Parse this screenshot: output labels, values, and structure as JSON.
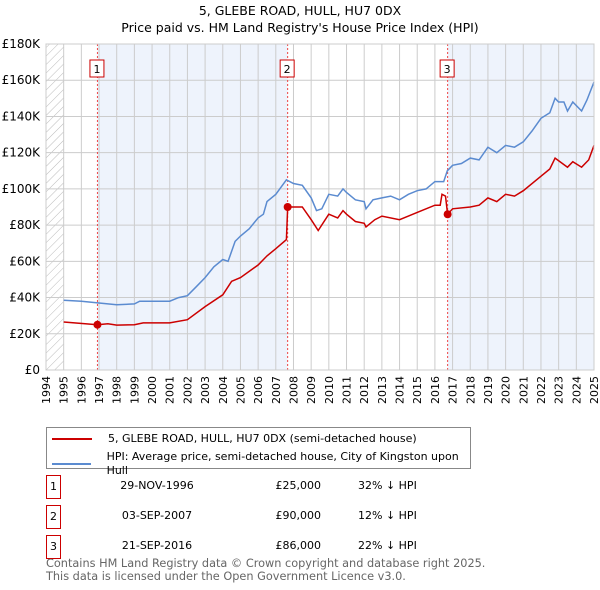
{
  "title": "5, GLEBE ROAD, HULL, HU7 0DX",
  "subtitle": "Price paid vs. HM Land Registry's House Price Index (HPI)",
  "colors": {
    "property": "#cc0000",
    "hpi": "#5b8bd0",
    "shade": "#eef3fc"
  },
  "chart_data": {
    "type": "line",
    "xlim": [
      1994,
      2025
    ],
    "ylim": [
      0,
      180000
    ],
    "yticks": [
      {
        "v": 0,
        "label": "£0"
      },
      {
        "v": 20000,
        "label": "£20K"
      },
      {
        "v": 40000,
        "label": "£40K"
      },
      {
        "v": 60000,
        "label": "£60K"
      },
      {
        "v": 80000,
        "label": "£80K"
      },
      {
        "v": 100000,
        "label": "£100K"
      },
      {
        "v": 120000,
        "label": "£120K"
      },
      {
        "v": 140000,
        "label": "£140K"
      },
      {
        "v": 160000,
        "label": "£160K"
      },
      {
        "v": 180000,
        "label": "£180K"
      }
    ],
    "xticks": [
      "1994",
      "1995",
      "1996",
      "1997",
      "1998",
      "1999",
      "2000",
      "2001",
      "2002",
      "2003",
      "2004",
      "2005",
      "2006",
      "2007",
      "2008",
      "2009",
      "2010",
      "2011",
      "2012",
      "2013",
      "2014",
      "2015",
      "2016",
      "2017",
      "2018",
      "2019",
      "2020",
      "2021",
      "2022",
      "2023",
      "2024",
      "2025"
    ],
    "series": [
      {
        "name": "HPI: Average price, semi-detached house, City of Kingston upon Hull",
        "color": "#5b8bd0",
        "points": [
          [
            1995,
            38500
          ],
          [
            1996,
            38000
          ],
          [
            1997,
            37000
          ],
          [
            1998,
            36000
          ],
          [
            1999,
            36500
          ],
          [
            1999.3,
            38000
          ],
          [
            2000,
            38000
          ],
          [
            2001,
            38000
          ],
          [
            2001.5,
            40000
          ],
          [
            2002,
            41000
          ],
          [
            2002.5,
            46000
          ],
          [
            2003,
            51000
          ],
          [
            2003.5,
            57000
          ],
          [
            2004,
            61000
          ],
          [
            2004.3,
            60000
          ],
          [
            2004.7,
            71000
          ],
          [
            2005,
            74000
          ],
          [
            2005.5,
            78000
          ],
          [
            2006,
            84000
          ],
          [
            2006.3,
            86000
          ],
          [
            2006.5,
            93000
          ],
          [
            2007,
            97000
          ],
          [
            2007.6,
            105000
          ],
          [
            2008,
            103000
          ],
          [
            2008.5,
            102000
          ],
          [
            2009,
            95000
          ],
          [
            2009.3,
            88000
          ],
          [
            2009.6,
            89000
          ],
          [
            2010,
            97000
          ],
          [
            2010.5,
            96000
          ],
          [
            2010.8,
            100000
          ],
          [
            2011,
            98000
          ],
          [
            2011.5,
            94000
          ],
          [
            2012,
            93000
          ],
          [
            2012.1,
            89000
          ],
          [
            2012.5,
            94000
          ],
          [
            2013,
            95000
          ],
          [
            2013.5,
            96000
          ],
          [
            2014,
            94000
          ],
          [
            2014.5,
            97000
          ],
          [
            2015,
            99000
          ],
          [
            2015.5,
            100000
          ],
          [
            2016,
            104000
          ],
          [
            2016.5,
            104000
          ],
          [
            2016.7,
            110000
          ],
          [
            2017,
            113000
          ],
          [
            2017.5,
            114000
          ],
          [
            2018,
            117000
          ],
          [
            2018.5,
            116000
          ],
          [
            2019,
            123000
          ],
          [
            2019.5,
            120000
          ],
          [
            2020,
            124000
          ],
          [
            2020.5,
            123000
          ],
          [
            2021,
            126000
          ],
          [
            2021.5,
            132000
          ],
          [
            2022,
            139000
          ],
          [
            2022.5,
            142000
          ],
          [
            2022.8,
            150000
          ],
          [
            2023,
            148000
          ],
          [
            2023.3,
            148000
          ],
          [
            2023.5,
            143000
          ],
          [
            2023.8,
            148000
          ],
          [
            2024.3,
            143000
          ],
          [
            2024.6,
            149000
          ],
          [
            2025,
            159000
          ]
        ]
      },
      {
        "name": "5, GLEBE ROAD, HULL, HU7 0DX (semi-detached house)",
        "color": "#cc0000",
        "points": [
          [
            1995,
            26500
          ],
          [
            1996.91,
            25000
          ],
          [
            1997.5,
            25500
          ],
          [
            1998,
            24800
          ],
          [
            1999,
            25000
          ],
          [
            1999.5,
            26000
          ],
          [
            2000,
            26000
          ],
          [
            2001,
            26000
          ],
          [
            2002,
            27800
          ],
          [
            2003,
            35000
          ],
          [
            2004,
            41500
          ],
          [
            2004.5,
            49000
          ],
          [
            2005,
            51000
          ],
          [
            2006,
            58000
          ],
          [
            2006.5,
            63000
          ],
          [
            2007,
            67000
          ],
          [
            2007.6,
            72000
          ],
          [
            2007.67,
            90000
          ],
          [
            2008,
            90000
          ],
          [
            2008.5,
            90000
          ],
          [
            2009,
            83000
          ],
          [
            2009.4,
            77000
          ],
          [
            2010,
            86000
          ],
          [
            2010.5,
            84000
          ],
          [
            2010.8,
            88000
          ],
          [
            2011,
            86000
          ],
          [
            2011.5,
            82000
          ],
          [
            2012,
            81000
          ],
          [
            2012.1,
            79000
          ],
          [
            2012.6,
            83000
          ],
          [
            2013,
            85000
          ],
          [
            2014,
            83000
          ],
          [
            2014.5,
            85000
          ],
          [
            2015,
            87000
          ],
          [
            2016,
            91000
          ],
          [
            2016.3,
            91000
          ],
          [
            2016.4,
            97000
          ],
          [
            2016.6,
            96000
          ],
          [
            2016.72,
            86000
          ],
          [
            2017,
            89000
          ],
          [
            2018,
            90000
          ],
          [
            2018.5,
            91000
          ],
          [
            2019,
            95000
          ],
          [
            2019.5,
            93000
          ],
          [
            2020,
            97000
          ],
          [
            2020.5,
            96000
          ],
          [
            2021,
            99000
          ],
          [
            2022,
            107000
          ],
          [
            2022.5,
            111000
          ],
          [
            2022.8,
            117000
          ],
          [
            2023.5,
            112000
          ],
          [
            2023.8,
            115000
          ],
          [
            2024.3,
            112000
          ],
          [
            2024.7,
            116000
          ],
          [
            2025,
            124000
          ]
        ]
      }
    ],
    "sales": [
      {
        "label": "1",
        "x": 1996.91,
        "y": 25000
      },
      {
        "label": "2",
        "x": 2007.67,
        "y": 90000
      },
      {
        "label": "3",
        "x": 2016.72,
        "y": 86000
      }
    ]
  },
  "legend": {
    "property": "5, GLEBE ROAD, HULL, HU7 0DX (semi-detached house)",
    "hpi": "HPI: Average price, semi-detached house, City of Kingston upon Hull"
  },
  "transactions": [
    {
      "num": "1",
      "date": "29-NOV-1996",
      "price": "£25,000",
      "hpi": "32% ↓ HPI"
    },
    {
      "num": "2",
      "date": "03-SEP-2007",
      "price": "£90,000",
      "hpi": "12% ↓ HPI"
    },
    {
      "num": "3",
      "date": "21-SEP-2016",
      "price": "£86,000",
      "hpi": "22% ↓ HPI"
    }
  ],
  "footer": {
    "line1": "Contains HM Land Registry data © Crown copyright and database right 2025.",
    "line2": "This data is licensed under the Open Government Licence v3.0."
  }
}
